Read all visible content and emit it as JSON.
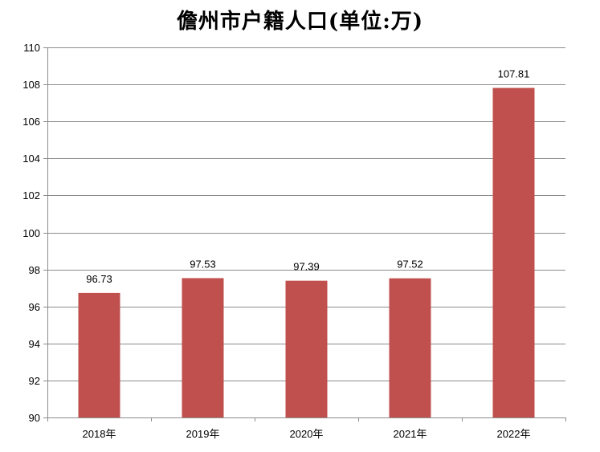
{
  "chart_data": {
    "type": "bar",
    "title": "儋州市户籍人口(单位:万)",
    "categories": [
      "2018年",
      "2019年",
      "2020年",
      "2021年",
      "2022年"
    ],
    "values": [
      96.73,
      97.53,
      97.39,
      97.52,
      107.81
    ],
    "data_labels": [
      "96.73",
      "97.53",
      "97.39",
      "97.52",
      "107.81"
    ],
    "ylim": [
      90,
      110
    ],
    "yticks": [
      90,
      92,
      94,
      96,
      98,
      100,
      102,
      104,
      106,
      108,
      110
    ],
    "grid": true,
    "legend": "none",
    "bar_color": "#C0504D",
    "grid_color": "#8C8C8C"
  }
}
